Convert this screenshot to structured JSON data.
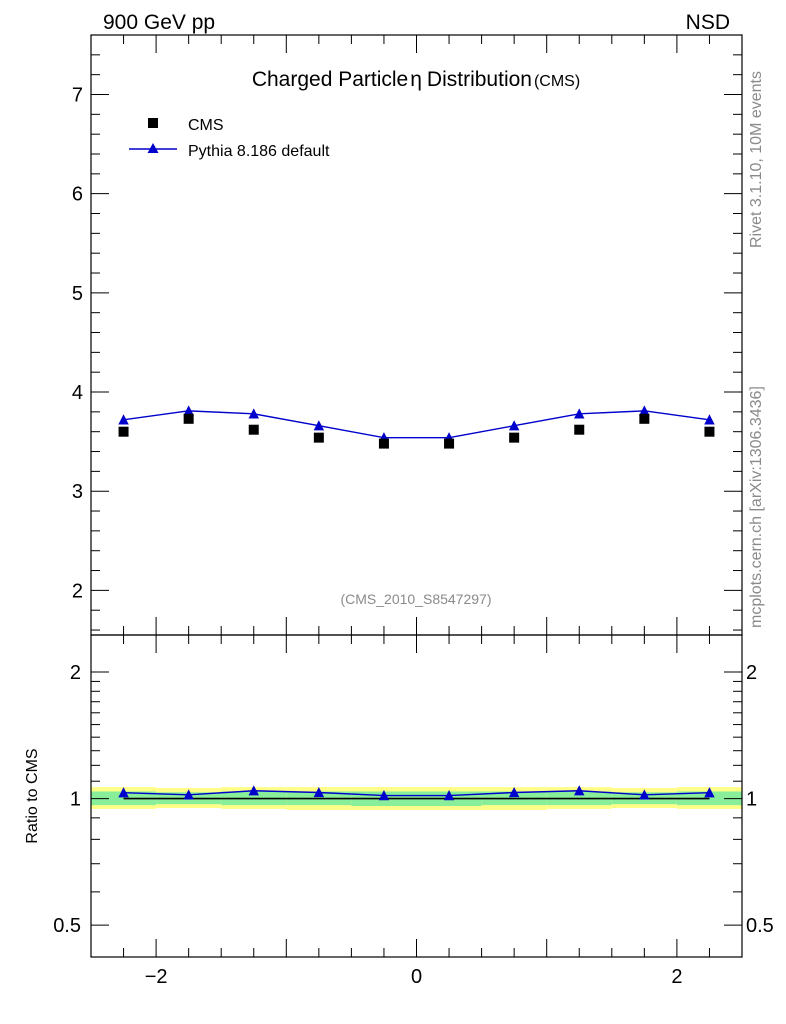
{
  "header": {
    "left": "900 GeV pp",
    "right": "NSD"
  },
  "side_labels": {
    "rivet": "Rivet 3.1.10,  10M events",
    "mcplots": "mcplots.cern.ch [arXiv:1306.3436]"
  },
  "colors": {
    "data": "#000000",
    "mc": "#0000cc",
    "band_inner": "#88ee99",
    "band_outer": "#ffff88",
    "watermark": "#8a8a8a"
  },
  "chart_data": [
    {
      "type": "scatter",
      "title": "Charged Particle",
      "title_symbol": "η",
      "title_rest": "Distribution",
      "title_suffix": "(CMS)",
      "analysis_id": "(CMS_2010_S8547297)",
      "xlabel": "",
      "ylabel": "",
      "xlim": [
        -2.5,
        2.5
      ],
      "ylim": [
        1.55,
        7.6
      ],
      "yticks": [
        2,
        3,
        4,
        5,
        6,
        7
      ],
      "legend_position": "top-left",
      "x": [
        -2.25,
        -1.75,
        -1.25,
        -0.75,
        -0.25,
        0.25,
        0.75,
        1.25,
        1.75,
        2.25
      ],
      "series": [
        {
          "name": "CMS",
          "marker": "square",
          "values": [
            3.6,
            3.73,
            3.62,
            3.54,
            3.48,
            3.48,
            3.54,
            3.62,
            3.73,
            3.6
          ]
        },
        {
          "name": "Pythia 8.186 default",
          "marker": "triangle",
          "line": true,
          "values": [
            3.72,
            3.81,
            3.78,
            3.66,
            3.54,
            3.54,
            3.66,
            3.78,
            3.81,
            3.72
          ]
        }
      ]
    },
    {
      "type": "line",
      "title": "",
      "ylabel": "Ratio to CMS",
      "yscale": "log",
      "xlim": [
        -2.5,
        2.5
      ],
      "ylim": [
        0.42,
        2.45
      ],
      "yticks": [
        0.5,
        1,
        2
      ],
      "ytick_labels": [
        "0.5",
        "1",
        "2"
      ],
      "xticks": [
        -2,
        0,
        2
      ],
      "xtick_labels": [
        "−2",
        "0",
        "2"
      ],
      "x": [
        -2.25,
        -1.75,
        -1.25,
        -0.75,
        -0.25,
        0.25,
        0.75,
        1.25,
        1.75,
        2.25
      ],
      "reference": 1.0,
      "band_inner": [
        [
          0.965,
          1.04
        ],
        [
          0.97,
          1.035
        ],
        [
          0.965,
          1.04
        ],
        [
          0.965,
          1.04
        ],
        [
          0.96,
          1.04
        ],
        [
          0.96,
          1.04
        ],
        [
          0.965,
          1.04
        ],
        [
          0.965,
          1.04
        ],
        [
          0.97,
          1.035
        ],
        [
          0.965,
          1.04
        ]
      ],
      "band_outer": [
        [
          0.945,
          1.065
        ],
        [
          0.95,
          1.06
        ],
        [
          0.945,
          1.065
        ],
        [
          0.94,
          1.065
        ],
        [
          0.94,
          1.065
        ],
        [
          0.94,
          1.065
        ],
        [
          0.94,
          1.065
        ],
        [
          0.945,
          1.065
        ],
        [
          0.95,
          1.06
        ],
        [
          0.945,
          1.065
        ]
      ],
      "series": [
        {
          "name": "Pythia 8.186 default",
          "marker": "triangle",
          "values": [
            1.033,
            1.021,
            1.044,
            1.034,
            1.017,
            1.017,
            1.034,
            1.044,
            1.021,
            1.033
          ]
        }
      ]
    }
  ]
}
